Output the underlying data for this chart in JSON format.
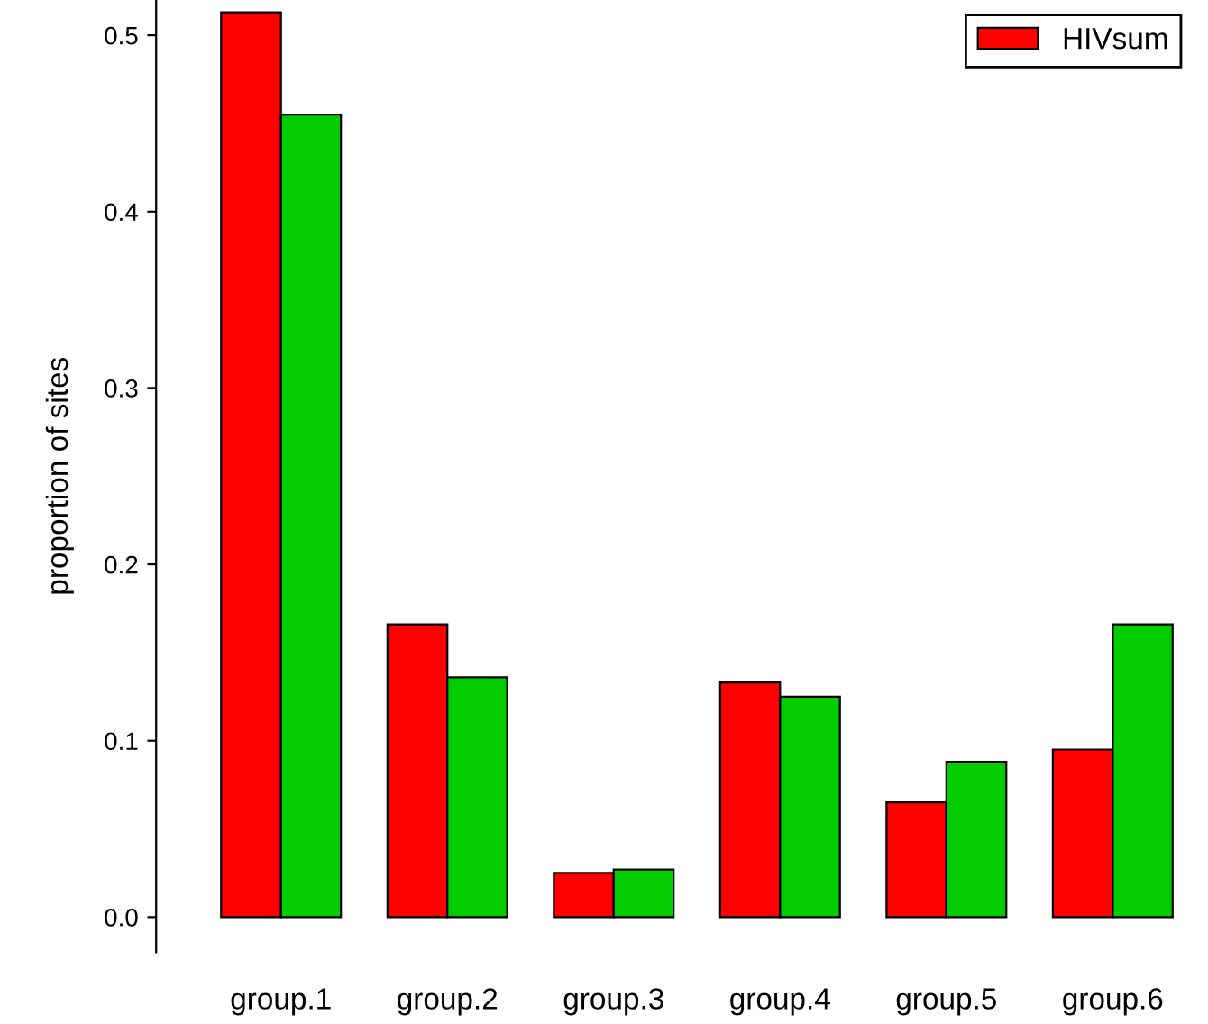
{
  "chart_data": {
    "type": "bar",
    "ylabel": "proportion of sites",
    "categories": [
      "group.1",
      "group.2",
      "group.3",
      "group.4",
      "group.5",
      "group.6"
    ],
    "series": [
      {
        "name": "HIVsum",
        "color": "#ff0000",
        "values": [
          0.513,
          0.166,
          0.025,
          0.133,
          0.065,
          0.095
        ]
      },
      {
        "color": "#00cc00",
        "values": [
          0.455,
          0.136,
          0.027,
          0.125,
          0.088,
          0.166
        ]
      }
    ],
    "ylim": [
      -0.02,
      0.52
    ],
    "yticks": [
      {
        "value": 0,
        "label": "0.0"
      },
      {
        "value": 0.1,
        "label": "0.1"
      },
      {
        "value": 0.2,
        "label": "0.2"
      },
      {
        "value": 0.3,
        "label": "0.3"
      },
      {
        "value": 0.4,
        "label": "0.4"
      },
      {
        "value": 0.5,
        "label": "0.5"
      }
    ],
    "grid": false,
    "legend": "top right"
  }
}
